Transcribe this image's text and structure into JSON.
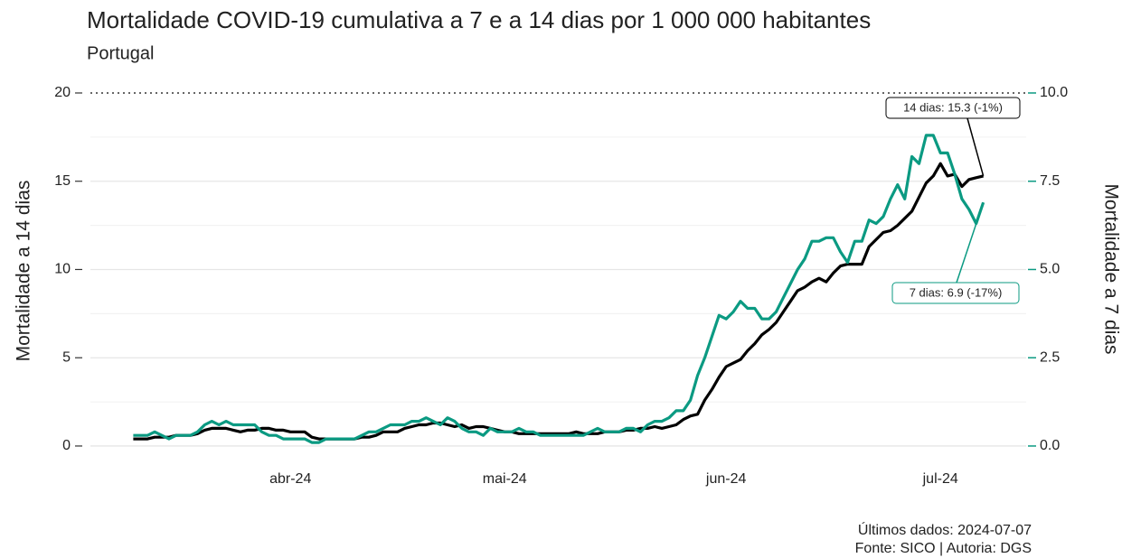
{
  "chart_data": {
    "type": "line",
    "title": "Mortalidade COVID-19 cumulativa a 7 e a 14 dias por 1 000 000 habitantes",
    "subtitle": "Portugal",
    "y_label": "Mortalidade a 14 dias",
    "y2_label": "Mortalidade a 7 dias",
    "footer": [
      "Últimos dados: 2024-07-07",
      "Fonte: SICO | Autoria: DGS"
    ],
    "annotations": [
      {
        "text": "14 dias: 15.3 (-1%)",
        "series": 0
      },
      {
        "text": "7 dias: 6.9 (-17%)",
        "series": 1
      }
    ],
    "x": [
      "2024-03-10",
      "2024-03-11",
      "2024-03-12",
      "2024-03-13",
      "2024-03-14",
      "2024-03-15",
      "2024-03-16",
      "2024-03-17",
      "2024-03-18",
      "2024-03-19",
      "2024-03-20",
      "2024-03-21",
      "2024-03-22",
      "2024-03-23",
      "2024-03-24",
      "2024-03-25",
      "2024-03-26",
      "2024-03-27",
      "2024-03-28",
      "2024-03-29",
      "2024-03-30",
      "2024-03-31",
      "2024-04-01",
      "2024-04-02",
      "2024-04-03",
      "2024-04-04",
      "2024-04-05",
      "2024-04-06",
      "2024-04-07",
      "2024-04-08",
      "2024-04-09",
      "2024-04-10",
      "2024-04-11",
      "2024-04-12",
      "2024-04-13",
      "2024-04-14",
      "2024-04-15",
      "2024-04-16",
      "2024-04-17",
      "2024-04-18",
      "2024-04-19",
      "2024-04-20",
      "2024-04-21",
      "2024-04-22",
      "2024-04-23",
      "2024-04-24",
      "2024-04-25",
      "2024-04-26",
      "2024-04-27",
      "2024-04-28",
      "2024-04-29",
      "2024-04-30",
      "2024-05-01",
      "2024-05-02",
      "2024-05-03",
      "2024-05-04",
      "2024-05-05",
      "2024-05-06",
      "2024-05-07",
      "2024-05-08",
      "2024-05-09",
      "2024-05-10",
      "2024-05-11",
      "2024-05-12",
      "2024-05-13",
      "2024-05-14",
      "2024-05-15",
      "2024-05-16",
      "2024-05-17",
      "2024-05-18",
      "2024-05-19",
      "2024-05-20",
      "2024-05-21",
      "2024-05-22",
      "2024-05-23",
      "2024-05-24",
      "2024-05-25",
      "2024-05-26",
      "2024-05-27",
      "2024-05-28",
      "2024-05-29",
      "2024-05-30",
      "2024-05-31",
      "2024-06-01",
      "2024-06-02",
      "2024-06-03",
      "2024-06-04",
      "2024-06-05",
      "2024-06-06",
      "2024-06-07",
      "2024-06-08",
      "2024-06-09",
      "2024-06-10",
      "2024-06-11",
      "2024-06-12",
      "2024-06-13",
      "2024-06-14",
      "2024-06-15",
      "2024-06-16",
      "2024-06-17",
      "2024-06-18",
      "2024-06-19",
      "2024-06-20",
      "2024-06-21",
      "2024-06-22",
      "2024-06-23",
      "2024-06-24",
      "2024-06-25",
      "2024-06-26",
      "2024-06-27",
      "2024-06-28",
      "2024-06-29",
      "2024-06-30",
      "2024-07-01",
      "2024-07-02",
      "2024-07-03",
      "2024-07-04",
      "2024-07-05",
      "2024-07-06",
      "2024-07-07"
    ],
    "series": [
      {
        "color": "#000000",
        "axis": "y",
        "values": [
          0.4,
          0.4,
          0.4,
          0.5,
          0.5,
          0.5,
          0.6,
          0.6,
          0.6,
          0.7,
          0.9,
          1.0,
          1.0,
          1.0,
          0.9,
          0.8,
          0.9,
          0.9,
          1.0,
          1.0,
          0.9,
          0.9,
          0.8,
          0.8,
          0.8,
          0.5,
          0.4,
          0.4,
          0.4,
          0.4,
          0.4,
          0.4,
          0.5,
          0.5,
          0.6,
          0.8,
          0.8,
          0.8,
          1.0,
          1.1,
          1.2,
          1.2,
          1.3,
          1.3,
          1.2,
          1.1,
          1.2,
          1.0,
          1.1,
          1.1,
          1.0,
          0.9,
          0.8,
          0.8,
          0.7,
          0.7,
          0.7,
          0.7,
          0.7,
          0.7,
          0.7,
          0.7,
          0.8,
          0.7,
          0.7,
          0.7,
          0.8,
          0.8,
          0.8,
          0.9,
          0.9,
          1.0,
          1.0,
          1.1,
          1.0,
          1.1,
          1.2,
          1.5,
          1.7,
          1.8,
          2.6,
          3.2,
          3.9,
          4.5,
          4.7,
          4.9,
          5.4,
          5.8,
          6.3,
          6.6,
          7.0,
          7.6,
          8.2,
          8.8,
          9.0,
          9.3,
          9.5,
          9.3,
          9.8,
          10.2,
          10.3,
          10.3,
          10.3,
          11.3,
          11.7,
          12.1,
          12.2,
          12.5,
          12.9,
          13.3,
          14.1,
          14.9,
          15.3,
          16.0,
          15.3,
          15.4,
          14.7,
          15.1,
          15.2,
          15.3
        ]
      },
      {
        "color": "#0b9a82",
        "axis": "y2",
        "values": [
          0.3,
          0.3,
          0.3,
          0.4,
          0.3,
          0.2,
          0.3,
          0.3,
          0.3,
          0.4,
          0.6,
          0.7,
          0.6,
          0.7,
          0.6,
          0.6,
          0.6,
          0.6,
          0.4,
          0.3,
          0.3,
          0.2,
          0.2,
          0.2,
          0.2,
          0.1,
          0.1,
          0.2,
          0.2,
          0.2,
          0.2,
          0.2,
          0.3,
          0.4,
          0.4,
          0.5,
          0.6,
          0.6,
          0.6,
          0.7,
          0.7,
          0.8,
          0.7,
          0.6,
          0.8,
          0.7,
          0.5,
          0.4,
          0.4,
          0.3,
          0.5,
          0.4,
          0.4,
          0.4,
          0.5,
          0.4,
          0.4,
          0.3,
          0.3,
          0.3,
          0.3,
          0.3,
          0.3,
          0.3,
          0.4,
          0.5,
          0.4,
          0.4,
          0.4,
          0.5,
          0.5,
          0.4,
          0.6,
          0.7,
          0.7,
          0.8,
          1.0,
          1.0,
          1.3,
          2.0,
          2.5,
          3.1,
          3.7,
          3.6,
          3.8,
          4.1,
          3.9,
          3.9,
          3.6,
          3.6,
          3.8,
          4.2,
          4.6,
          5.0,
          5.3,
          5.8,
          5.8,
          5.9,
          5.9,
          5.5,
          5.2,
          5.8,
          5.8,
          6.4,
          6.3,
          6.5,
          7.0,
          7.4,
          7.0,
          8.2,
          8.0,
          8.8,
          8.8,
          8.3,
          8.3,
          7.7,
          7.0,
          6.7,
          6.3,
          6.9
        ]
      }
    ],
    "xlim": [
      "2024-03-04",
      "2024-07-13"
    ],
    "xticks": [
      {
        "value": "2024-04-01",
        "label": "abr-24"
      },
      {
        "value": "2024-05-01",
        "label": "mai-24"
      },
      {
        "value": "2024-06-01",
        "label": "jun-24"
      },
      {
        "value": "2024-07-01",
        "label": "jul-24"
      }
    ],
    "ylim": [
      -0.8,
      20.5
    ],
    "yticks": [
      0,
      5,
      10,
      15,
      20
    ],
    "yminorticks": [
      2.5,
      7.5,
      12.5,
      17.5
    ],
    "y2lim": [
      -0.4,
      10.25
    ],
    "y2ticks": [
      {
        "value": 0,
        "label": "0.0"
      },
      {
        "value": 2.5,
        "label": "2.5"
      },
      {
        "value": 5,
        "label": "5.0"
      },
      {
        "value": 7.5,
        "label": "7.5"
      },
      {
        "value": 10,
        "label": "10.0"
      }
    ],
    "y2color": "#0b9a82",
    "hline": 20,
    "grid": true
  }
}
